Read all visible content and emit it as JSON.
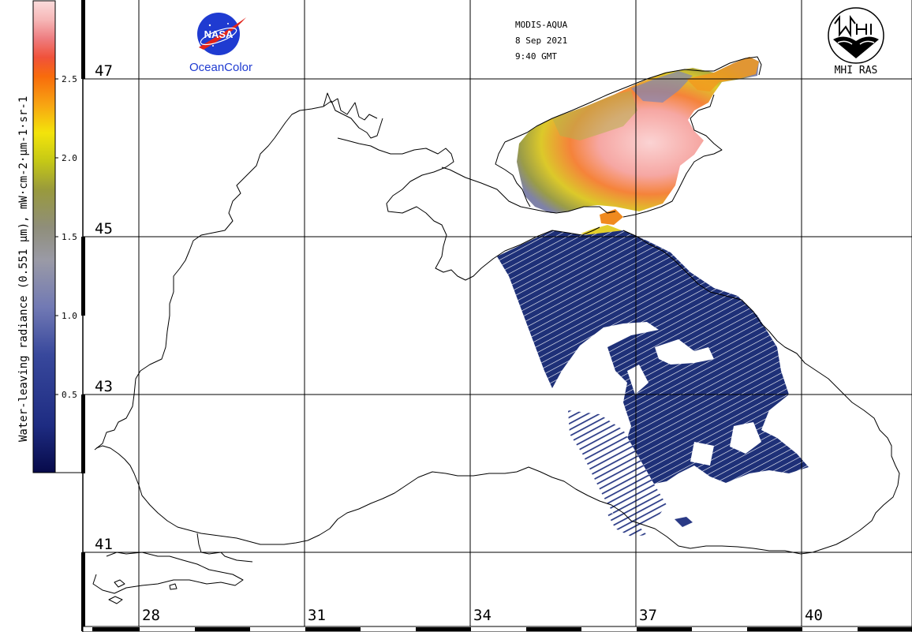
{
  "header": {
    "sensor": "MODIS-AQUA",
    "date": "8 Sep 2021",
    "time": "9:40 GMT"
  },
  "logos": {
    "nasa_word": "NASA",
    "nasa_caption": "OceanColor",
    "mhi_caption": "MHI RAS"
  },
  "colorbar": {
    "title": "Water-leaving radiance (0.551 µm), mW·cm-2·µm-1·sr-1",
    "ticks": [
      "0.5",
      "1.0",
      "1.5",
      "2.0",
      "2.5"
    ],
    "colors": [
      "#070a4a",
      "#1e2c82",
      "#38489c",
      "#7179b4",
      "#9a9aa6",
      "#8f8e7a",
      "#999a3c",
      "#c5c816",
      "#f3e40b",
      "#f8a412",
      "#f86b0c",
      "#f0523a",
      "#ee7d80",
      "#f6b7b7",
      "#fbdcdc"
    ]
  },
  "map": {
    "lat_labels": [
      "47",
      "45",
      "43",
      "41"
    ],
    "lon_labels": [
      "28",
      "31",
      "34",
      "37",
      "40"
    ]
  },
  "colors": {
    "background": "#ffffff",
    "nasa_blue": "#1f3bd1",
    "nasa_red": "#e2231a",
    "low_radiance": "#1e3078",
    "high_radiance": "#f7b3b3"
  }
}
